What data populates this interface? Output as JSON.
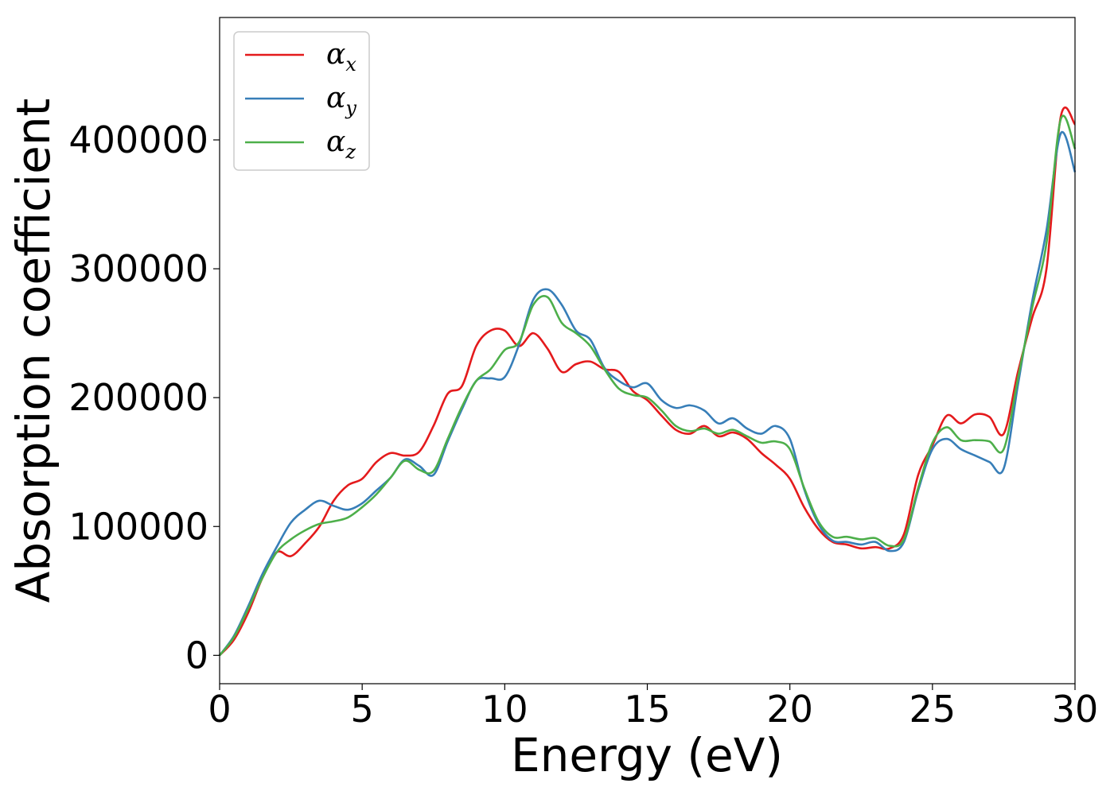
{
  "chart_data": {
    "type": "line",
    "xlabel": "Energy (eV)",
    "ylabel": "Absorption coefficient",
    "xlim": [
      0,
      30
    ],
    "ylim": [
      -22000,
      495000
    ],
    "xticks": [
      0,
      5,
      10,
      15,
      20,
      25,
      30
    ],
    "xtick_labels": [
      "0",
      "5",
      "10",
      "15",
      "20",
      "25",
      "30"
    ],
    "yticks": [
      0,
      100000,
      200000,
      300000,
      400000
    ],
    "ytick_labels": [
      "0",
      "100000",
      "200000",
      "300000",
      "400000"
    ],
    "grid": false,
    "legend_placement": "top-left",
    "x": [
      0,
      0.5,
      1,
      1.5,
      2,
      2.5,
      3,
      3.5,
      4,
      4.5,
      5,
      5.5,
      6,
      6.5,
      7,
      7.5,
      8,
      8.5,
      9,
      9.5,
      10,
      10.5,
      11,
      11.5,
      12,
      12.5,
      13,
      13.5,
      14,
      14.5,
      15,
      15.5,
      16,
      16.5,
      17,
      17.5,
      18,
      18.5,
      19,
      19.5,
      20,
      20.5,
      21,
      21.5,
      22,
      22.5,
      23,
      23.5,
      24,
      24.5,
      25,
      25.5,
      26,
      26.5,
      27,
      27.5,
      28,
      28.5,
      29,
      29.5,
      30
    ],
    "series": [
      {
        "name": "α",
        "subscript": "x",
        "color": "#e41a1c",
        "values": [
          0,
          12000,
          33000,
          60000,
          80000,
          77000,
          87000,
          100000,
          120000,
          132000,
          137000,
          150000,
          157000,
          155000,
          158000,
          178000,
          203000,
          209000,
          240000,
          252000,
          252000,
          240000,
          250000,
          238000,
          220000,
          226000,
          228000,
          222000,
          220000,
          205000,
          198000,
          186000,
          175000,
          172000,
          178000,
          170000,
          173000,
          168000,
          157000,
          148000,
          137000,
          115000,
          98000,
          88000,
          86000,
          83000,
          84000,
          83000,
          94000,
          140000,
          163000,
          186000,
          180000,
          187000,
          185000,
          172000,
          220000,
          262000,
          300000,
          418000,
          412000
        ]
      },
      {
        "name": "α",
        "subscript": "y",
        "color": "#377eb8",
        "values": [
          0,
          15000,
          38000,
          63000,
          84000,
          103000,
          113000,
          120000,
          116000,
          113000,
          118000,
          128000,
          138000,
          152000,
          147000,
          140000,
          166000,
          191000,
          213000,
          215000,
          216000,
          241000,
          276000,
          284000,
          272000,
          252000,
          245000,
          223000,
          213000,
          208000,
          211000,
          198000,
          192000,
          194000,
          190000,
          180000,
          184000,
          176000,
          172000,
          178000,
          168000,
          129000,
          102000,
          89000,
          88000,
          86000,
          88000,
          81000,
          88000,
          128000,
          160000,
          168000,
          160000,
          155000,
          150000,
          145000,
          210000,
          275000,
          330000,
          405000,
          375000
        ]
      },
      {
        "name": "α",
        "subscript": "z",
        "color": "#4daf4a",
        "values": [
          0,
          14000,
          36000,
          60000,
          80000,
          90000,
          97000,
          102000,
          104000,
          107000,
          115000,
          125000,
          138000,
          151000,
          144000,
          143000,
          168000,
          193000,
          213000,
          222000,
          237000,
          243000,
          272000,
          278000,
          258000,
          250000,
          240000,
          222000,
          207000,
          202000,
          200000,
          190000,
          178000,
          174000,
          176000,
          172000,
          175000,
          170000,
          165000,
          166000,
          160000,
          130000,
          104000,
          92000,
          92000,
          90000,
          91000,
          85000,
          90000,
          130000,
          165000,
          177000,
          167000,
          167000,
          166000,
          160000,
          215000,
          270000,
          320000,
          416000,
          393000
        ]
      }
    ]
  }
}
